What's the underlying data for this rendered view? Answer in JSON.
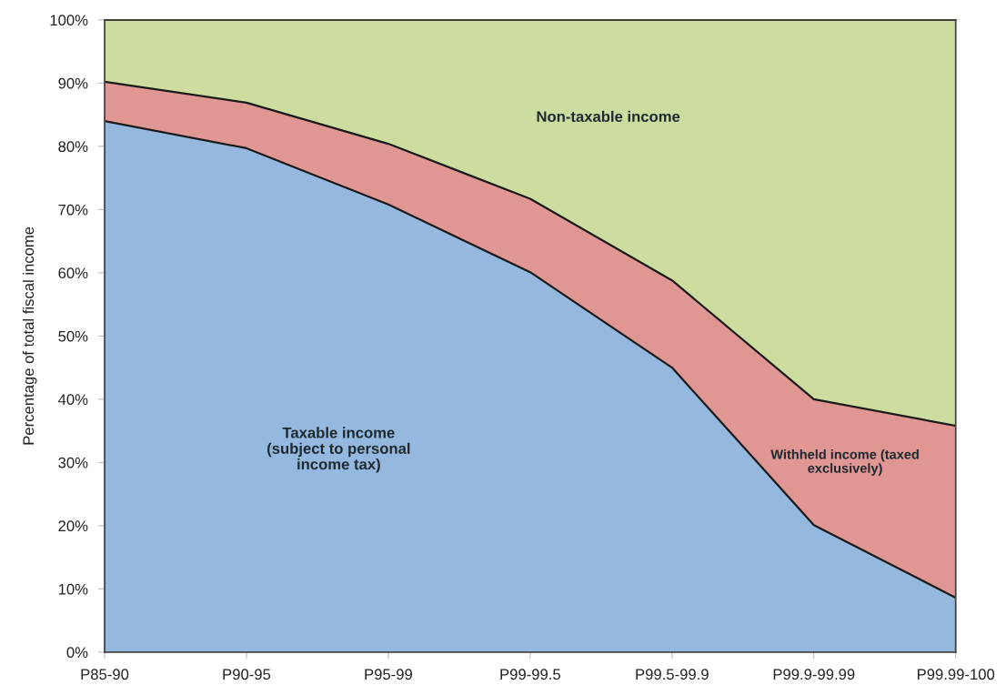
{
  "chart_data": {
    "type": "area",
    "stacked": true,
    "ylabel": "Percentage of total fiscal income",
    "categories": [
      "P85-90",
      "P90-95",
      "P95-99",
      "P99-99.5",
      "P99.5-99.9",
      "P99.9-99.99",
      "P99.99-100"
    ],
    "series": [
      {
        "name": "Taxable income\n(subject to personal\nincome tax)",
        "color": "#95b8df",
        "values": [
          84,
          79.7,
          70.8,
          60.1,
          45,
          20.1,
          8.6
        ]
      },
      {
        "name": "Withheld income (taxed\nexclusively)",
        "color": "#e09693",
        "values": [
          6.2,
          7.2,
          9.6,
          11.6,
          13.8,
          19.9,
          27.2
        ]
      },
      {
        "name": "Non-taxable income",
        "color": "#cddda0",
        "values": [
          9.8,
          13.1,
          19.6,
          28.3,
          41.2,
          60,
          64.2
        ]
      }
    ],
    "ylim": [
      0,
      100
    ],
    "yticks": [
      {
        "value": 0,
        "label": "0%"
      },
      {
        "value": 10,
        "label": "10%"
      },
      {
        "value": 20,
        "label": "20%"
      },
      {
        "value": 30,
        "label": "30%"
      },
      {
        "value": 40,
        "label": "40%"
      },
      {
        "value": 50,
        "label": "50%"
      },
      {
        "value": 60,
        "label": "60%"
      },
      {
        "value": 70,
        "label": "70%"
      },
      {
        "value": 80,
        "label": "80%"
      },
      {
        "value": 90,
        "label": "90%"
      },
      {
        "value": 100,
        "label": "100%"
      }
    ],
    "grid": false,
    "legend": false
  }
}
